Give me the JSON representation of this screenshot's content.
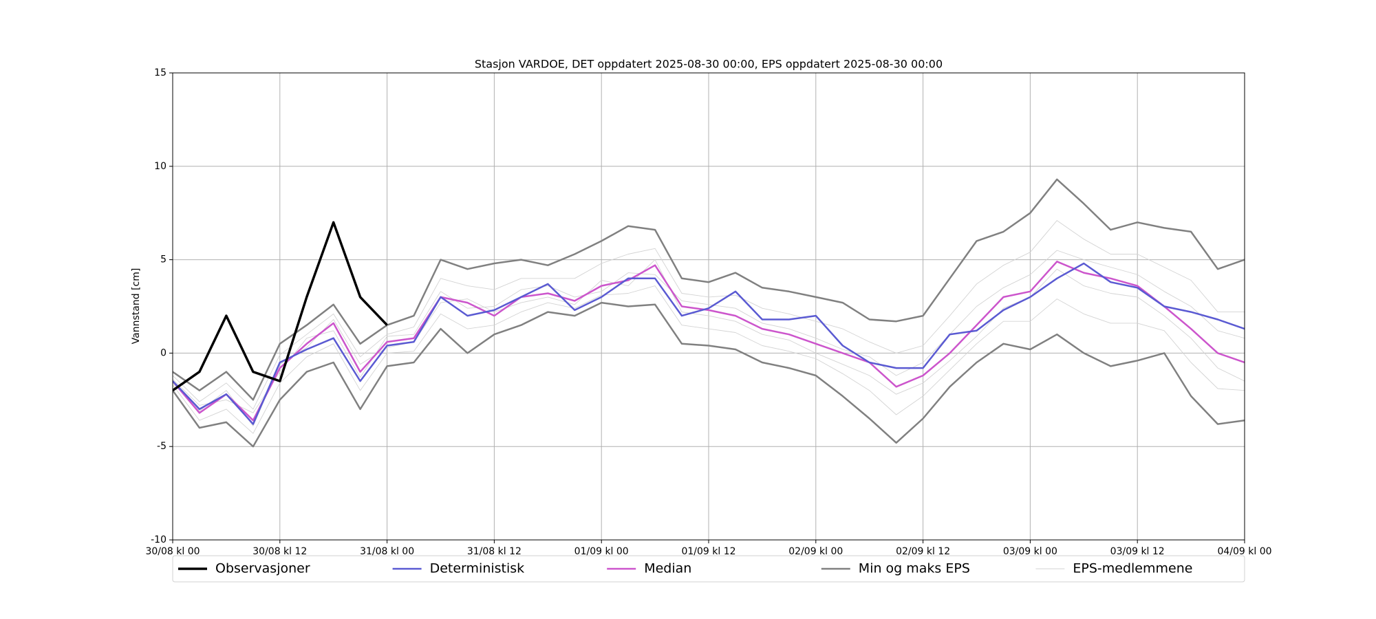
{
  "chart_data": {
    "type": "line",
    "title": "Stasjon VARDOE, DET oppdatert 2025-08-30 00:00, EPS oppdatert 2025-08-30 00:00",
    "ylabel": "Vannstand [cm]",
    "grid": true,
    "legend": "bottom",
    "xlim": [
      0,
      120
    ],
    "xticks": [
      {
        "value": 0,
        "label": "30/08 kl 00"
      },
      {
        "value": 12,
        "label": "30/08 kl 12"
      },
      {
        "value": 24,
        "label": "31/08 kl 00"
      },
      {
        "value": 36,
        "label": "31/08 kl 12"
      },
      {
        "value": 48,
        "label": "01/09 kl 00"
      },
      {
        "value": 60,
        "label": "01/09 kl 12"
      },
      {
        "value": 72,
        "label": "02/09 kl 00"
      },
      {
        "value": 84,
        "label": "02/09 kl 12"
      },
      {
        "value": 96,
        "label": "03/09 kl 00"
      },
      {
        "value": 108,
        "label": "03/09 kl 12"
      },
      {
        "value": 120,
        "label": "04/09 kl 00"
      }
    ],
    "ylim": [
      -10,
      15
    ],
    "yticks": [
      -10,
      -5,
      0,
      5,
      10,
      15
    ],
    "x": [
      0,
      3,
      6,
      9,
      12,
      15,
      18,
      21,
      24,
      27,
      30,
      33,
      36,
      39,
      42,
      45,
      48,
      51,
      54,
      57,
      60,
      63,
      66,
      69,
      72,
      75,
      78,
      81,
      84,
      87,
      90,
      93,
      96,
      99,
      102,
      105,
      108,
      111,
      114,
      117,
      120
    ],
    "series": [
      {
        "name": "Observasjoner",
        "color": "#000000",
        "linewidth": 3.5,
        "lines": [
          [
            -2,
            -1,
            2,
            -1,
            -1.5,
            3,
            7,
            3,
            1.5,
            null,
            null,
            null,
            null,
            null,
            null,
            null,
            null,
            null,
            null,
            null,
            null,
            null,
            null,
            null,
            null,
            null,
            null,
            null,
            null,
            null,
            null,
            null,
            null,
            null,
            null,
            null,
            null,
            null,
            null,
            null,
            null
          ]
        ]
      },
      {
        "name": "Deterministisk",
        "color": "#5a5ad2",
        "linewidth": 2.5,
        "lines": [
          [
            -1.5,
            -3,
            -2.2,
            -3.8,
            -0.5,
            0.2,
            0.8,
            -1.5,
            0.4,
            0.6,
            3,
            2,
            2.3,
            3,
            3.7,
            2.3,
            3,
            4,
            4,
            2,
            2.4,
            3.3,
            1.8,
            1.8,
            2,
            0.4,
            -0.5,
            -0.8,
            -0.8,
            1,
            1.2,
            2.3,
            3,
            4,
            4.8,
            3.8,
            3.5,
            2.5,
            2.2,
            1.8,
            1.3
          ]
        ]
      },
      {
        "name": "Median",
        "color": "#cc55cc",
        "linewidth": 2.5,
        "lines": [
          [
            -1.5,
            -3.2,
            -2.2,
            -3.6,
            -0.8,
            0.5,
            1.6,
            -1,
            0.6,
            0.8,
            3,
            2.7,
            2,
            3,
            3.2,
            2.8,
            3.6,
            3.9,
            4.7,
            2.5,
            2.3,
            2,
            1.3,
            1,
            0.5,
            0,
            -0.5,
            -1.8,
            -1.2,
            0,
            1.5,
            3,
            3.3,
            4.9,
            4.3,
            4,
            3.6,
            2.5,
            1.3,
            0,
            -0.5
          ]
        ]
      },
      {
        "name": "Min og maks EPS",
        "color": "#808080",
        "linewidth": 2.5,
        "lines": [
          [
            -2,
            -4,
            -3.7,
            -5,
            -2.5,
            -1,
            -0.5,
            -3,
            -0.7,
            -0.5,
            1.3,
            0,
            1,
            1.5,
            2.2,
            2,
            2.7,
            2.5,
            2.6,
            0.5,
            0.4,
            0.2,
            -0.5,
            -0.8,
            -1.2,
            -2.3,
            -3.5,
            -4.8,
            -3.5,
            -1.8,
            -0.5,
            0.5,
            0.2,
            1,
            0,
            -0.7,
            -0.4,
            0,
            -2.3,
            -3.8,
            -3.6
          ],
          [
            -1,
            -2,
            -1,
            -2.5,
            0.5,
            1.5,
            2.6,
            0.5,
            1.5,
            2,
            5,
            4.5,
            4.8,
            5,
            4.7,
            5.3,
            6,
            6.8,
            6.6,
            4,
            3.8,
            4.3,
            3.5,
            3.3,
            3,
            2.7,
            1.8,
            1.7,
            2,
            4,
            6,
            6.5,
            7.5,
            9.3,
            8,
            6.6,
            7,
            6.7,
            6.5,
            4.5,
            5
          ]
        ]
      },
      {
        "name": "EPS-medlemmene",
        "color": "#d3d3d3",
        "linewidth": 0.9,
        "lines": [
          [
            -1.2,
            -2.6,
            -1.6,
            -3,
            -0.1,
            1,
            2.1,
            -0.2,
            1,
            1.4,
            4,
            3.6,
            3.4,
            4,
            4,
            4,
            4.8,
            5.3,
            5.6,
            3.2,
            3,
            3.1,
            2.4,
            2.1,
            1.7,
            1.3,
            0.6,
            0,
            0.4,
            2,
            3.7,
            4.7,
            5.4,
            7.1,
            6.1,
            5.3,
            5.3,
            4.6,
            3.9,
            2.2,
            2.2
          ],
          [
            -1.7,
            -3.6,
            -3,
            -4.3,
            -1.6,
            -0.2,
            0.5,
            -2,
            0,
            0.1,
            2.1,
            1.3,
            1.5,
            2.2,
            2.7,
            2.4,
            3.1,
            3.2,
            3.6,
            1.5,
            1.3,
            1.1,
            0.4,
            0.1,
            -0.3,
            -1.1,
            -2,
            -3.3,
            -2.3,
            -0.9,
            0.5,
            1.7,
            1.7,
            2.9,
            2.1,
            1.6,
            1.6,
            1.2,
            -0.5,
            -1.9,
            -2
          ],
          [
            -1.4,
            -2.8,
            -2.5,
            -3.2,
            -1,
            0.8,
            1.2,
            -1.3,
            0.9,
            1,
            3.3,
            2.4,
            2.5,
            3.4,
            3.6,
            3,
            3.3,
            4.3,
            4.2,
            2.8,
            2.6,
            2.4,
            1.6,
            1.3,
            0.8,
            0.2,
            -0.2,
            -1.2,
            -0.5,
            1,
            2.5,
            3.5,
            4.2,
            5.5,
            5,
            4.6,
            4.2,
            3.3,
            2.5,
            1.2,
            0.8
          ],
          [
            -1.6,
            -3.1,
            -2,
            -3.9,
            -0.6,
            0.3,
            1.8,
            -0.6,
            0.3,
            0.6,
            2.7,
            2.9,
            2.2,
            2.7,
            3,
            2.6,
            3.9,
            3.6,
            5,
            2.2,
            2,
            1.7,
            1,
            0.7,
            0,
            -0.6,
            -1.2,
            -2.2,
            -1.6,
            -0.4,
            0.9,
            2.4,
            3,
            4.5,
            3.6,
            3.2,
            3,
            2,
            0.8,
            -0.8,
            -1.5
          ]
        ]
      }
    ]
  }
}
